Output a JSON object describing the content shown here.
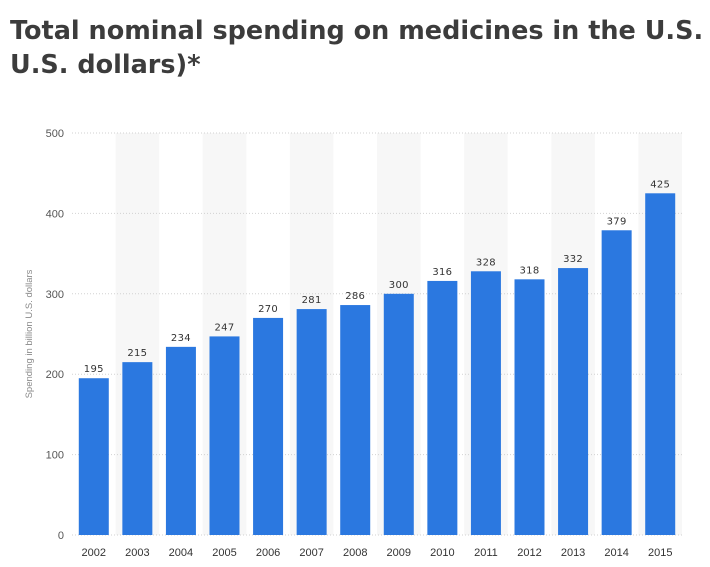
{
  "title_line1": "Total nominal spending on medicines in the U.S. from",
  "title_line2": "U.S. dollars)*",
  "colors": {
    "bar": "#2b78e0",
    "band": "#f7f7f7",
    "grid": "#d2d2d2",
    "title": "#3c3c3c"
  },
  "chart_data": {
    "type": "bar",
    "title": "Total nominal spending on medicines in the U.S. from U.S. dollars)*",
    "xlabel": "",
    "ylabel": "Spending in billion U.S. dollars",
    "categories": [
      "2002",
      "2003",
      "2004",
      "2005",
      "2006",
      "2007",
      "2008",
      "2009",
      "2010",
      "2011",
      "2012",
      "2013",
      "2014",
      "2015"
    ],
    "values": [
      195,
      215,
      234,
      247,
      270,
      281,
      286,
      300,
      316,
      328,
      318,
      332,
      379,
      425
    ],
    "ylim": [
      0,
      500
    ],
    "yticks": [
      0,
      100,
      200,
      300,
      400,
      500
    ],
    "grid": true,
    "data_labels": true
  }
}
